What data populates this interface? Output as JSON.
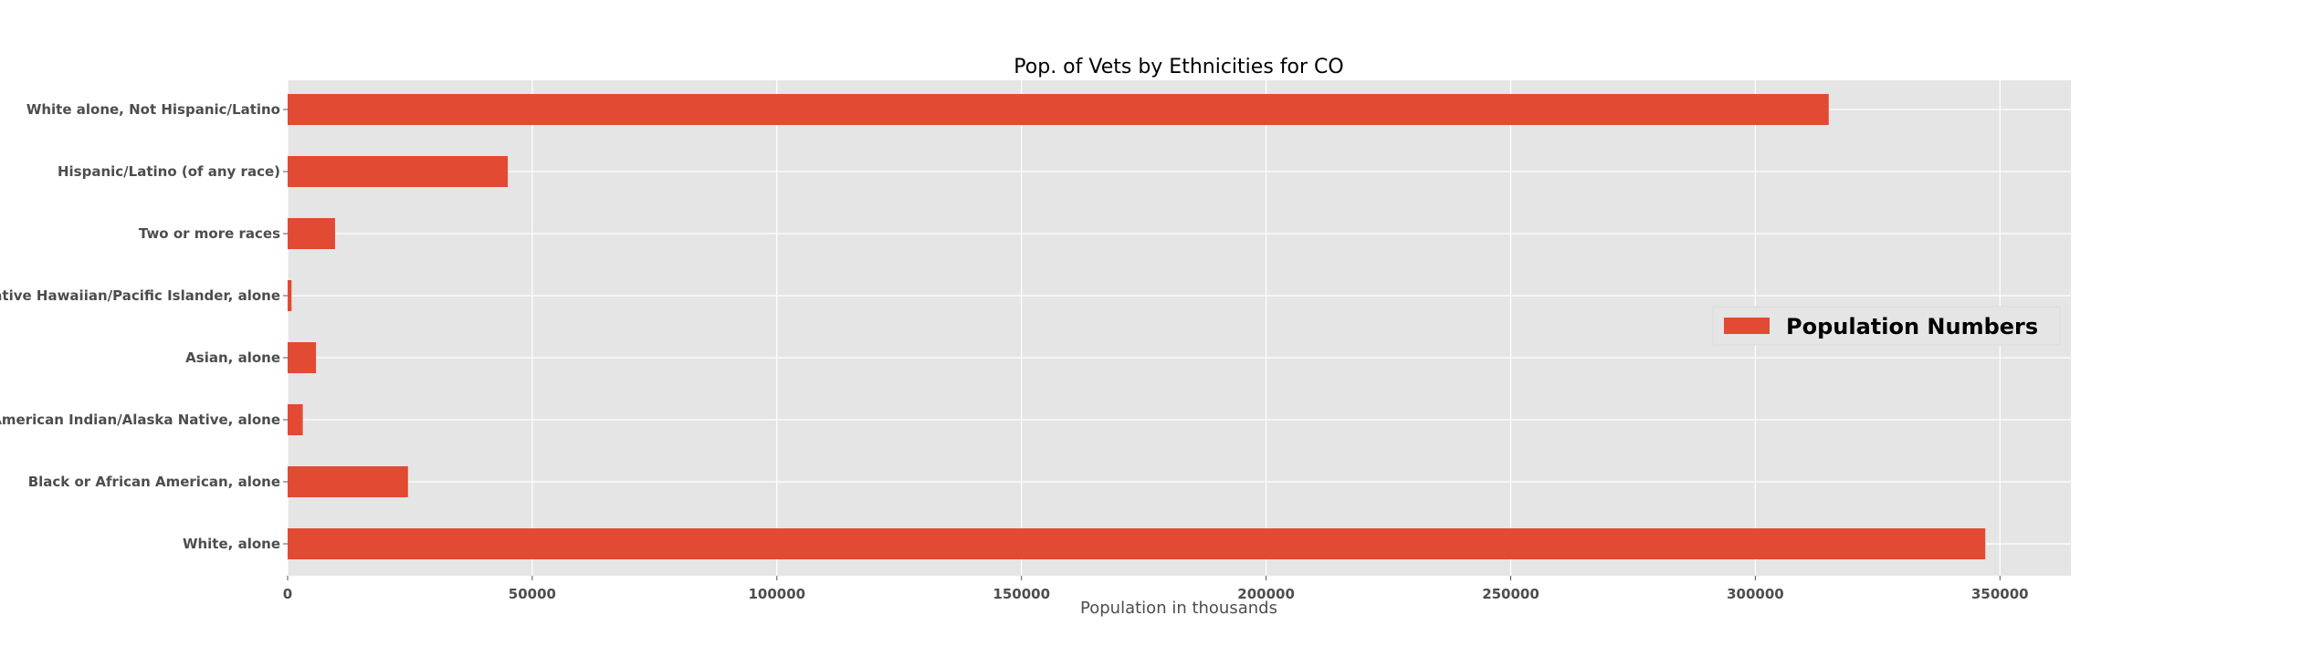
{
  "chart_data": {
    "type": "bar",
    "orientation": "horizontal",
    "title": "Pop. of Vets by Ethnicities for CO",
    "xlabel": "Population in thousands",
    "ylabel": "",
    "categories": [
      "White, alone",
      "Black or African American, alone",
      "American Indian/Alaska Native, alone",
      "Asian, alone",
      "Native Hawaiian/Pacific Islander, alone",
      "Two or more races",
      "Hispanic/Latino (of any race)",
      "White alone, Not Hispanic/Latino"
    ],
    "series": [
      {
        "name": "Population Numbers",
        "color": "#e24a33",
        "values": [
          347000,
          24600,
          3100,
          5800,
          800,
          9700,
          45000,
          315000
        ]
      }
    ],
    "xlim": [
      0,
      364500
    ],
    "xticks": [
      0,
      50000,
      100000,
      150000,
      200000,
      250000,
      300000,
      350000
    ],
    "grid": true,
    "legend_position": "right",
    "background_color": "#e5e5e5",
    "grid_color": "#ffffff"
  }
}
